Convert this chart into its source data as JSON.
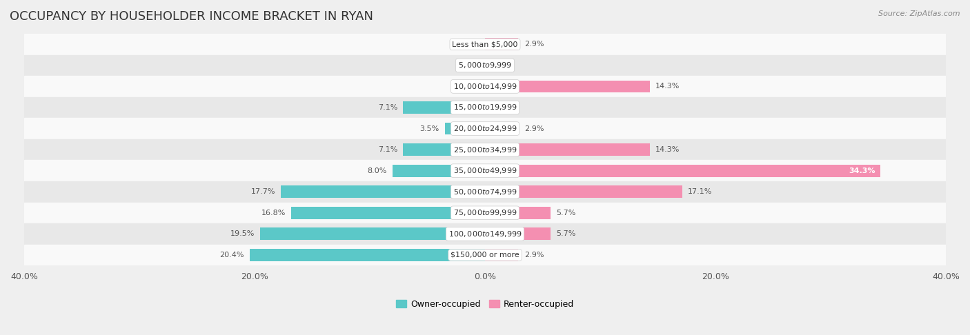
{
  "title": "OCCUPANCY BY HOUSEHOLDER INCOME BRACKET IN RYAN",
  "source": "Source: ZipAtlas.com",
  "categories": [
    "Less than $5,000",
    "$5,000 to $9,999",
    "$10,000 to $14,999",
    "$15,000 to $19,999",
    "$20,000 to $24,999",
    "$25,000 to $34,999",
    "$35,000 to $49,999",
    "$50,000 to $74,999",
    "$75,000 to $99,999",
    "$100,000 to $149,999",
    "$150,000 or more"
  ],
  "owner_values": [
    0.0,
    0.0,
    0.0,
    7.1,
    3.5,
    7.1,
    8.0,
    17.7,
    16.8,
    19.5,
    20.4
  ],
  "renter_values": [
    2.9,
    0.0,
    14.3,
    0.0,
    2.9,
    14.3,
    34.3,
    17.1,
    5.7,
    5.7,
    2.9
  ],
  "owner_color": "#5bc8c8",
  "renter_color": "#f48fb1",
  "bar_height": 0.58,
  "xlim": 40.0,
  "background_color": "#efefef",
  "row_bg_light": "#f9f9f9",
  "row_bg_dark": "#e8e8e8",
  "title_fontsize": 13,
  "label_fontsize": 8,
  "axis_label_fontsize": 9,
  "legend_fontsize": 9,
  "source_fontsize": 8,
  "value_label_color": "#555555",
  "category_label_color": "#333333",
  "pill_bg_color": "#ffffff",
  "pill_border_color": "#cccccc"
}
